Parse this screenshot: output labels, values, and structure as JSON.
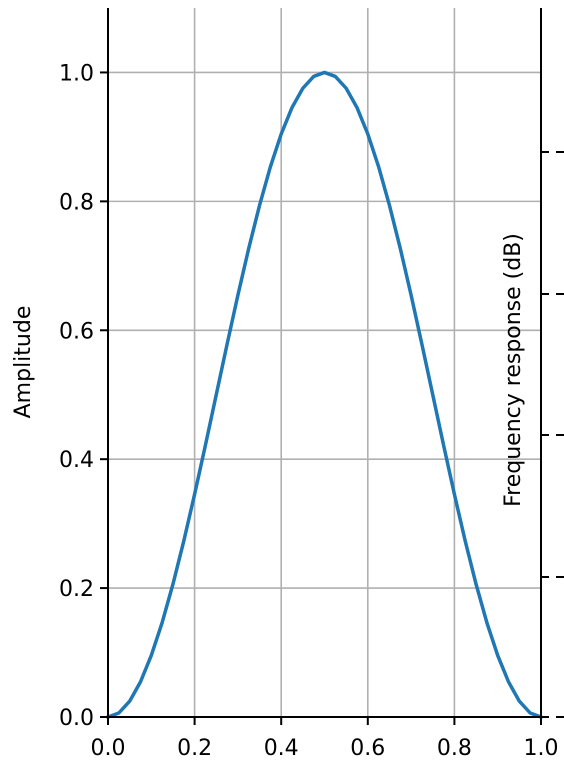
{
  "chart_data": {
    "type": "line",
    "title": "",
    "xlabel": "",
    "ylabel": "Amplitude",
    "y2label": "Frequency response (dB)",
    "xlim": [
      0.0,
      1.0
    ],
    "ylim": [
      0.0,
      1.1
    ],
    "grid": true,
    "x_ticks": [
      "0.0",
      "0.2",
      "0.4",
      "0.6",
      "0.8",
      "1.0"
    ],
    "y_ticks": [
      "0.0",
      "0.2",
      "0.4",
      "0.6",
      "0.8",
      "1.0"
    ],
    "y2_tick_count": 5,
    "series": [
      {
        "color": "#1f77b4",
        "x": [
          0.0,
          0.025,
          0.05,
          0.075,
          0.1,
          0.125,
          0.15,
          0.175,
          0.2,
          0.225,
          0.25,
          0.275,
          0.3,
          0.325,
          0.35,
          0.375,
          0.4,
          0.425,
          0.45,
          0.475,
          0.5,
          0.525,
          0.55,
          0.575,
          0.6,
          0.625,
          0.65,
          0.675,
          0.7,
          0.725,
          0.75,
          0.775,
          0.8,
          0.825,
          0.85,
          0.875,
          0.9,
          0.925,
          0.95,
          0.975,
          1.0
        ],
        "y": [
          0.0,
          0.0062,
          0.0245,
          0.0545,
          0.0955,
          0.1464,
          0.2061,
          0.273,
          0.3455,
          0.4218,
          0.5,
          0.5782,
          0.6545,
          0.727,
          0.7939,
          0.8536,
          0.9045,
          0.9455,
          0.9755,
          0.9938,
          1.0,
          0.9938,
          0.9755,
          0.9455,
          0.9045,
          0.8536,
          0.7939,
          0.727,
          0.6545,
          0.5782,
          0.5,
          0.4218,
          0.3455,
          0.273,
          0.2061,
          0.1464,
          0.0955,
          0.0545,
          0.0245,
          0.0062,
          0.0
        ]
      }
    ]
  }
}
